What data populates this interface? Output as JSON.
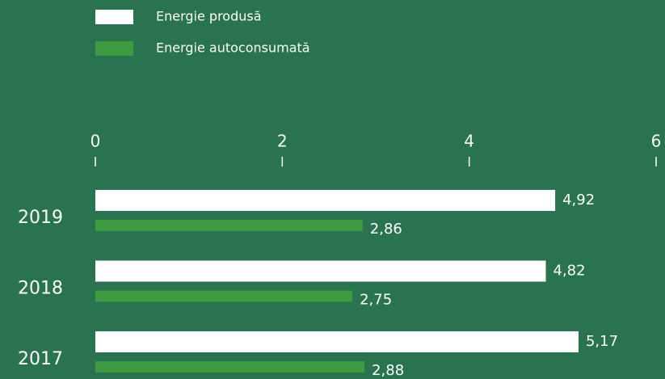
{
  "chart_data": {
    "type": "bar",
    "orientation": "horizontal",
    "categories": [
      "2019",
      "2018",
      "2017"
    ],
    "series": [
      {
        "name": "Energie produsă",
        "color": "#ffffff",
        "values": [
          4.92,
          4.82,
          5.17
        ],
        "value_labels": [
          "4,92",
          "4,82",
          "5,17"
        ]
      },
      {
        "name": "Energie autoconsumată",
        "color": "#3d9a3e",
        "values": [
          2.86,
          2.75,
          2.88
        ],
        "value_labels": [
          "2,86",
          "2,75",
          "2,88"
        ]
      }
    ],
    "xlim": [
      0,
      6
    ],
    "xticks": [
      0,
      2,
      4,
      6
    ],
    "legend": "top-left"
  }
}
